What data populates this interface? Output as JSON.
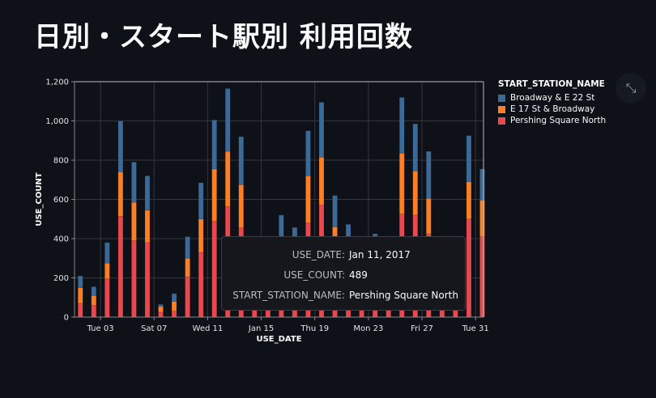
{
  "title": "日別・スタート駅別 利用回数",
  "colors": {
    "background": "#0e1117",
    "Broadway & E 22 St": "#3b6a99",
    "E 17 St & Broadway": "#fc7f26",
    "Pershing Square North": "#e9484f"
  },
  "chart_data": {
    "type": "bar",
    "stacked": true,
    "xlabel": "USE_DATE",
    "ylabel": "USE_COUNT",
    "ylim": [
      0,
      1200
    ],
    "yticks": [
      "0",
      "200",
      "400",
      "600",
      "800",
      "1,000",
      "1,200"
    ],
    "yticks_values": [
      0,
      200,
      400,
      600,
      800,
      1000,
      1200
    ],
    "xticks": [
      {
        "day": 3,
        "label": "Tue 03"
      },
      {
        "day": 7,
        "label": "Sat 07"
      },
      {
        "day": 11,
        "label": "Wed 11"
      },
      {
        "day": 15,
        "label": "Jan 15"
      },
      {
        "day": 19,
        "label": "Thu 19"
      },
      {
        "day": 23,
        "label": "Mon 23"
      },
      {
        "day": 27,
        "label": "Fri 27"
      },
      {
        "day": 31,
        "label": "Tue 31"
      }
    ],
    "x": [
      "2017-01-01",
      "2017-01-02",
      "2017-01-03",
      "2017-01-04",
      "2017-01-05",
      "2017-01-06",
      "2017-01-07",
      "2017-01-08",
      "2017-01-09",
      "2017-01-10",
      "2017-01-11",
      "2017-01-12",
      "2017-01-13",
      "2017-01-14",
      "2017-01-15",
      "2017-01-16",
      "2017-01-17",
      "2017-01-18",
      "2017-01-19",
      "2017-01-20",
      "2017-01-21",
      "2017-01-22",
      "2017-01-23",
      "2017-01-24",
      "2017-01-25",
      "2017-01-26",
      "2017-01-27",
      "2017-01-28",
      "2017-01-29",
      "2017-01-30",
      "2017-01-31"
    ],
    "grid": true,
    "legend_position": "right",
    "legend_title": "START_STATION_NAME",
    "series": [
      {
        "name": "Pershing Square North",
        "values": [
          70,
          60,
          195,
          515,
          390,
          380,
          25,
          30,
          205,
          330,
          489,
          565,
          455,
          100,
          130,
          206,
          258,
          480,
          570,
          285,
          150,
          110,
          230,
          210,
          525,
          520,
          425,
          150,
          140,
          500,
          410
        ]
      },
      {
        "name": "E 17 St & Broadway",
        "values": [
          80,
          50,
          80,
          225,
          195,
          165,
          30,
          50,
          95,
          170,
          266,
          280,
          220,
          65,
          85,
          169,
          102,
          240,
          245,
          175,
          183,
          120,
          95,
          90,
          310,
          225,
          180,
          128,
          122,
          190,
          187
        ]
      },
      {
        "name": "Broadway & E 22 St",
        "values": [
          60,
          45,
          105,
          260,
          205,
          175,
          10,
          40,
          110,
          185,
          250,
          320,
          245,
          85,
          105,
          145,
          97,
          230,
          280,
          160,
          140,
          103,
          100,
          83,
          285,
          240,
          240,
          112,
          120,
          235,
          158
        ]
      }
    ]
  },
  "tooltip": {
    "rows": [
      {
        "key": "USE_DATE:",
        "value": "Jan 11, 2017"
      },
      {
        "key": "USE_COUNT:",
        "value": "489"
      },
      {
        "key": "START_STATION_NAME:",
        "value": "Pershing Square North"
      }
    ]
  },
  "expand_icon": "expand-arrows-icon"
}
